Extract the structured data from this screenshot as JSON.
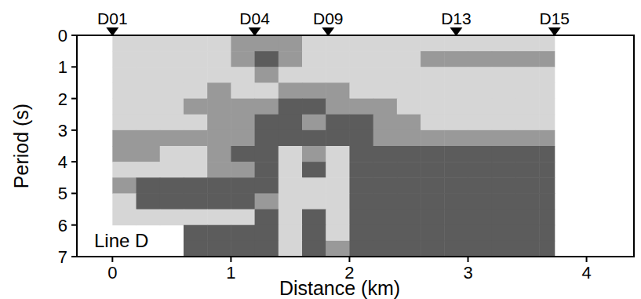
{
  "chart_data": {
    "type": "heatmap",
    "title": "Line D",
    "x_label": "Distance (km)",
    "y_label": "Period (s)",
    "xlim": [
      -0.3,
      4.4
    ],
    "ylim": [
      0,
      7
    ],
    "xticks": [
      0,
      1,
      2,
      3,
      4
    ],
    "yticks": [
      0,
      1,
      2,
      3,
      4,
      5,
      6,
      7
    ],
    "annotations": [
      {
        "text": "D01",
        "x": 0
      },
      {
        "text": "D04",
        "x": 1.2
      },
      {
        "text": "D09",
        "x": 1.82
      },
      {
        "text": "D13",
        "x": 2.9
      },
      {
        "text": "D15",
        "x": 3.73
      }
    ],
    "x_edges": [
      0,
      0.2,
      0.4,
      0.6,
      0.8,
      1.0,
      1.2,
      1.4,
      1.6,
      1.8,
      2.0,
      2.2,
      2.4,
      2.6,
      2.8,
      3.0,
      3.2,
      3.4,
      3.6,
      3.73
    ],
    "y_edges": [
      0,
      0.5,
      1,
      1.5,
      2,
      2.5,
      3,
      3.5,
      4,
      4.5,
      5,
      5.5,
      6,
      6.5,
      7
    ],
    "cells": [
      [
        1,
        1,
        1,
        1,
        1,
        2,
        2,
        2,
        1,
        1,
        1,
        1,
        1,
        1,
        1,
        1,
        1,
        1,
        1
      ],
      [
        1,
        1,
        1,
        1,
        1,
        2,
        3,
        2,
        1,
        1,
        1,
        1,
        1,
        2,
        2,
        2,
        2,
        2,
        2
      ],
      [
        1,
        1,
        1,
        1,
        1,
        1,
        2,
        1,
        1,
        1,
        1,
        1,
        1,
        1,
        1,
        1,
        1,
        1,
        1
      ],
      [
        1,
        1,
        1,
        1,
        2,
        1,
        1,
        2,
        2,
        2,
        1,
        1,
        1,
        1,
        1,
        1,
        1,
        1,
        1
      ],
      [
        1,
        1,
        1,
        2,
        2,
        2,
        2,
        3,
        3,
        2,
        2,
        2,
        1,
        1,
        1,
        1,
        1,
        1,
        1
      ],
      [
        1,
        1,
        1,
        1,
        2,
        2,
        3,
        3,
        2,
        3,
        3,
        2,
        2,
        1,
        1,
        1,
        1,
        1,
        1
      ],
      [
        2,
        2,
        2,
        2,
        2,
        2,
        3,
        3,
        3,
        3,
        3,
        2,
        2,
        2,
        2,
        2,
        2,
        2,
        2
      ],
      [
        2,
        2,
        1,
        1,
        2,
        3,
        3,
        1,
        2,
        1,
        3,
        3,
        3,
        3,
        3,
        3,
        3,
        3,
        3
      ],
      [
        1,
        1,
        1,
        1,
        2,
        2,
        3,
        1,
        3,
        1,
        3,
        3,
        3,
        3,
        3,
        3,
        3,
        3,
        3
      ],
      [
        2,
        3,
        3,
        3,
        3,
        3,
        3,
        1,
        1,
        1,
        3,
        3,
        3,
        3,
        3,
        3,
        3,
        3,
        3
      ],
      [
        1,
        3,
        3,
        3,
        3,
        3,
        2,
        1,
        1,
        1,
        3,
        3,
        3,
        3,
        3,
        3,
        3,
        3,
        3
      ],
      [
        1,
        1,
        1,
        1,
        1,
        1,
        3,
        1,
        3,
        1,
        3,
        3,
        3,
        3,
        3,
        3,
        3,
        3,
        3
      ],
      [
        null,
        null,
        null,
        3,
        3,
        3,
        3,
        1,
        3,
        1,
        3,
        3,
        3,
        3,
        3,
        3,
        3,
        3,
        3
      ],
      [
        null,
        null,
        null,
        3,
        3,
        3,
        3,
        1,
        3,
        2,
        3,
        3,
        3,
        3,
        3,
        3,
        3,
        3,
        3
      ]
    ]
  }
}
